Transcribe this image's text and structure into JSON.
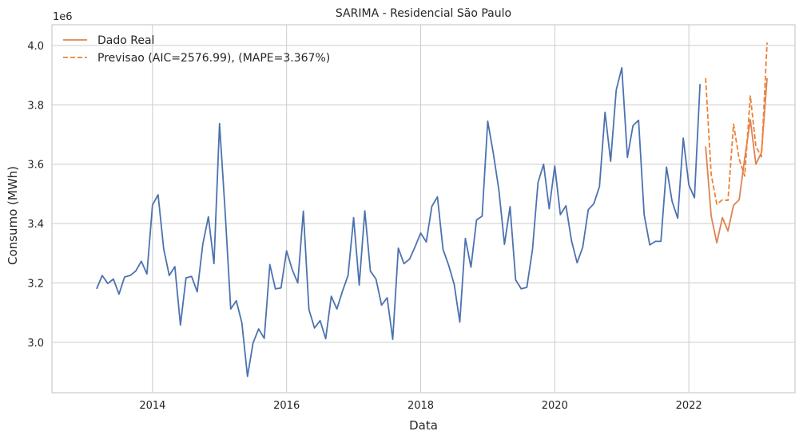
{
  "chart_data": {
    "type": "line",
    "title": "SARIMA - Residencial São Paulo",
    "xlabel": "Data",
    "ylabel": "Consumo (MWh)",
    "y_offset_label": "1e6",
    "xlim": [
      "2012-07-01",
      "2023-08-01"
    ],
    "ylim": [
      2.83,
      4.07
    ],
    "x_ticks": [
      "2014-01-01",
      "2016-01-01",
      "2018-01-01",
      "2020-01-01",
      "2022-01-01"
    ],
    "x_tick_labels": [
      "2014",
      "2016",
      "2018",
      "2020",
      "2022"
    ],
    "y_ticks": [
      3.0,
      3.2,
      3.4,
      3.6,
      3.8,
      4.0
    ],
    "y_tick_labels": [
      "3.0",
      "3.2",
      "3.4",
      "3.6",
      "3.8",
      "4.0"
    ],
    "grid": true,
    "legend_position": "top-left",
    "series": [
      {
        "name": "",
        "color": "#4c72b0",
        "style": "solid",
        "start": "2013-03",
        "values": [
          3.18,
          3.225,
          3.198,
          3.213,
          3.162,
          3.22,
          3.225,
          3.24,
          3.273,
          3.23,
          3.463,
          3.497,
          3.315,
          3.225,
          3.255,
          3.058,
          3.217,
          3.222,
          3.17,
          3.33,
          3.423,
          3.265,
          3.737,
          3.44,
          3.112,
          3.14,
          3.065,
          2.885,
          2.998,
          3.045,
          3.013,
          3.262,
          3.18,
          3.183,
          3.308,
          3.245,
          3.2,
          3.442,
          3.11,
          3.048,
          3.073,
          3.012,
          3.155,
          3.112,
          3.172,
          3.225,
          3.42,
          3.193,
          3.443,
          3.24,
          3.213,
          3.125,
          3.15,
          3.01,
          3.317,
          3.265,
          3.28,
          3.322,
          3.368,
          3.338,
          3.458,
          3.49,
          3.313,
          3.26,
          3.195,
          3.068,
          3.35,
          3.253,
          3.412,
          3.425,
          3.745,
          3.637,
          3.513,
          3.33,
          3.457,
          3.21,
          3.18,
          3.185,
          3.31,
          3.538,
          3.6,
          3.45,
          3.594,
          3.43,
          3.46,
          3.342,
          3.268,
          3.32,
          3.447,
          3.467,
          3.525,
          3.775,
          3.61,
          3.85,
          3.925,
          3.623,
          3.73,
          3.748,
          3.43,
          3.328,
          3.34,
          3.34,
          3.59,
          3.475,
          3.418,
          3.688,
          3.53,
          3.487,
          3.87
        ]
      },
      {
        "name": "Dado Real",
        "color": "#dd8452",
        "style": "solid",
        "start": "2022-04",
        "values": [
          3.66,
          3.425,
          3.335,
          3.42,
          3.375,
          3.462,
          3.48,
          3.62,
          3.75,
          3.6,
          3.64,
          3.89
        ]
      },
      {
        "name": "Previsao (AIC=2576.99), (MAPE=3.367%)",
        "color": "#ee8136",
        "style": "dashed",
        "start": "2022-04",
        "values": [
          3.89,
          3.565,
          3.465,
          3.48,
          3.478,
          3.735,
          3.618,
          3.56,
          3.83,
          3.66,
          3.625,
          4.01
        ]
      }
    ]
  }
}
